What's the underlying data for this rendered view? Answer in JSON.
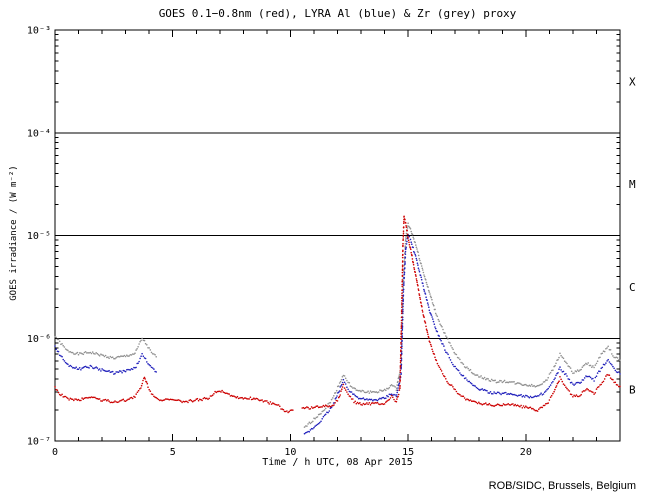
{
  "chart_data": {
    "type": "scatter",
    "title": "GOES 0.1−0.8nm (red), LYRA Al (blue) & Zr (grey) proxy",
    "xlabel": "Time / h UTC, 08 Apr 2015",
    "ylabel": "GOES irradiance / (W m⁻²)",
    "credit": "ROB/SIDC, Brussels, Belgium",
    "xlim": [
      0,
      24
    ],
    "ylim": [
      1e-07,
      0.001
    ],
    "ylog_min": -7,
    "ylog_max": -3,
    "x_minor_step": 1,
    "xticks": {
      "values": [
        0,
        5,
        10,
        15,
        20
      ],
      "labels": [
        "0",
        "5",
        "10",
        "15",
        "20"
      ]
    },
    "ylog_exponents": [
      -3,
      -4,
      -5,
      -6,
      -7
    ],
    "ytick_labels": [
      "10⁻³",
      "10⁻⁴",
      "10⁻⁵",
      "10⁻⁶",
      "10⁻⁷"
    ],
    "hlines": [
      0.0001,
      1e-05,
      1e-06
    ],
    "class_bands": [
      {
        "label": "X",
        "exp_top": -3,
        "exp_bottom": -4
      },
      {
        "label": "M",
        "exp_top": -4,
        "exp_bottom": -5
      },
      {
        "label": "C",
        "exp_top": -5,
        "exp_bottom": -6
      },
      {
        "label": "B",
        "exp_top": -6,
        "exp_bottom": -7
      }
    ],
    "dot_step": 0.05,
    "scatter": 0.012,
    "dot_r": 0.8,
    "series": [
      {
        "id": "zr",
        "name": "LYRA Zr proxy",
        "color": "#909090",
        "segments": [
          [
            [
              0,
              1.05e-06
            ],
            [
              0.2,
              9.2e-07
            ],
            [
              0.5,
              7.6e-07
            ],
            [
              1,
              7e-07
            ],
            [
              1.5,
              7.3e-07
            ],
            [
              2,
              6.8e-07
            ],
            [
              2.5,
              6.4e-07
            ],
            [
              3,
              6.7e-07
            ],
            [
              3.4,
              7.1e-07
            ],
            [
              3.7,
              1e-06
            ],
            [
              3.9,
              8.6e-07
            ],
            [
              4.1,
              7.2e-07
            ],
            [
              4.3,
              6.6e-07
            ]
          ],
          [
            [
              10.6,
              1.35e-07
            ],
            [
              10.9,
              1.55e-07
            ],
            [
              11.2,
              1.8e-07
            ],
            [
              11.5,
              2.1e-07
            ],
            [
              11.8,
              2.6e-07
            ],
            [
              12.05,
              3.5e-07
            ],
            [
              12.25,
              4.4e-07
            ],
            [
              12.5,
              3.6e-07
            ],
            [
              12.8,
              3.1e-07
            ],
            [
              13.2,
              3e-07
            ],
            [
              13.6,
              3e-07
            ],
            [
              14,
              3.1e-07
            ],
            [
              14.3,
              3.5e-07
            ],
            [
              14.5,
              3.2e-07
            ],
            [
              14.7,
              5.5e-07
            ],
            [
              14.8,
              3.8e-06
            ],
            [
              14.9,
              9.5e-06
            ],
            [
              15,
              1.3e-05
            ],
            [
              15.1,
              1.15e-05
            ],
            [
              15.3,
              8.5e-06
            ],
            [
              15.6,
              4.8e-06
            ],
            [
              15.9,
              2.8e-06
            ],
            [
              16.2,
              1.7e-06
            ],
            [
              16.6,
              1.05e-06
            ],
            [
              17,
              7e-07
            ],
            [
              17.4,
              5.4e-07
            ],
            [
              17.8,
              4.5e-07
            ],
            [
              18.2,
              4.1e-07
            ],
            [
              18.7,
              3.8e-07
            ],
            [
              19.2,
              3.8e-07
            ],
            [
              19.7,
              3.6e-07
            ],
            [
              20.1,
              3.5e-07
            ],
            [
              20.5,
              3.4e-07
            ],
            [
              20.9,
              4e-07
            ],
            [
              21.2,
              5.2e-07
            ],
            [
              21.45,
              7e-07
            ],
            [
              21.7,
              5.9e-07
            ],
            [
              22,
              4.6e-07
            ],
            [
              22.3,
              4.9e-07
            ],
            [
              22.6,
              5.7e-07
            ],
            [
              22.9,
              5.2e-07
            ],
            [
              23.2,
              6.9e-07
            ],
            [
              23.5,
              8.2e-07
            ],
            [
              23.75,
              6.6e-07
            ],
            [
              24,
              6.1e-07
            ]
          ]
        ]
      },
      {
        "id": "al",
        "name": "LYRA Al proxy",
        "color": "#2020bb",
        "segments": [
          [
            [
              0,
              8.2e-07
            ],
            [
              0.2,
              7e-07
            ],
            [
              0.5,
              5.6e-07
            ],
            [
              1,
              5e-07
            ],
            [
              1.5,
              5.3e-07
            ],
            [
              2,
              4.9e-07
            ],
            [
              2.5,
              4.6e-07
            ],
            [
              3,
              4.8e-07
            ],
            [
              3.4,
              5.1e-07
            ],
            [
              3.7,
              6.9e-07
            ],
            [
              3.9,
              6e-07
            ],
            [
              4.1,
              5.1e-07
            ],
            [
              4.3,
              4.7e-07
            ]
          ],
          [
            [
              10.6,
              1.15e-07
            ],
            [
              10.9,
              1.3e-07
            ],
            [
              11.2,
              1.5e-07
            ],
            [
              11.5,
              1.8e-07
            ],
            [
              11.8,
              2.2e-07
            ],
            [
              12.05,
              3e-07
            ],
            [
              12.25,
              3.9e-07
            ],
            [
              12.5,
              3.1e-07
            ],
            [
              12.8,
              2.7e-07
            ],
            [
              13.2,
              2.5e-07
            ],
            [
              13.6,
              2.5e-07
            ],
            [
              14,
              2.6e-07
            ],
            [
              14.3,
              2.9e-07
            ],
            [
              14.5,
              2.7e-07
            ],
            [
              14.7,
              4.5e-07
            ],
            [
              14.8,
              2.8e-06
            ],
            [
              14.9,
              7.5e-06
            ],
            [
              15,
              1e-05
            ],
            [
              15.1,
              9e-06
            ],
            [
              15.3,
              6.5e-06
            ],
            [
              15.6,
              3.5e-06
            ],
            [
              15.9,
              1.9e-06
            ],
            [
              16.2,
              1.2e-06
            ],
            [
              16.6,
              7.5e-07
            ],
            [
              17,
              5.2e-07
            ],
            [
              17.4,
              4.1e-07
            ],
            [
              17.8,
              3.4e-07
            ],
            [
              18.2,
              3.1e-07
            ],
            [
              18.7,
              2.9e-07
            ],
            [
              19.2,
              2.9e-07
            ],
            [
              19.7,
              2.8e-07
            ],
            [
              20.1,
              2.7e-07
            ],
            [
              20.5,
              2.7e-07
            ],
            [
              20.9,
              3.1e-07
            ],
            [
              21.2,
              3.9e-07
            ],
            [
              21.45,
              5.1e-07
            ],
            [
              21.7,
              4.4e-07
            ],
            [
              22,
              3.5e-07
            ],
            [
              22.3,
              3.7e-07
            ],
            [
              22.6,
              4.3e-07
            ],
            [
              22.9,
              3.9e-07
            ],
            [
              23.2,
              5.1e-07
            ],
            [
              23.5,
              6.2e-07
            ],
            [
              23.75,
              5e-07
            ],
            [
              24,
              4.5e-07
            ]
          ]
        ]
      },
      {
        "id": "goes",
        "name": "GOES 0.1-0.8nm",
        "color": "#cc0000",
        "segments": [
          [
            [
              0,
              3.3e-07
            ],
            [
              0.2,
              2.9e-07
            ],
            [
              0.5,
              2.6e-07
            ],
            [
              1,
              2.5e-07
            ],
            [
              1.5,
              2.7e-07
            ],
            [
              2,
              2.5e-07
            ],
            [
              2.5,
              2.4e-07
            ],
            [
              3,
              2.5e-07
            ],
            [
              3.4,
              2.7e-07
            ],
            [
              3.65,
              3.3e-07
            ],
            [
              3.8,
              4.2e-07
            ],
            [
              3.95,
              3.4e-07
            ],
            [
              4.15,
              2.8e-07
            ],
            [
              4.5,
              2.5e-07
            ],
            [
              5,
              2.5e-07
            ],
            [
              5.5,
              2.4e-07
            ],
            [
              6,
              2.5e-07
            ],
            [
              6.5,
              2.6e-07
            ],
            [
              6.9,
              3.1e-07
            ],
            [
              7.2,
              3e-07
            ],
            [
              7.6,
              2.7e-07
            ],
            [
              8,
              2.6e-07
            ],
            [
              8.5,
              2.6e-07
            ],
            [
              9,
              2.4e-07
            ],
            [
              9.5,
              2.2e-07
            ],
            [
              9.8,
              1.9e-07
            ],
            [
              10.1,
              2e-07
            ]
          ],
          [
            [
              10.5,
              2.1e-07
            ],
            [
              11,
              2.1e-07
            ],
            [
              11.4,
              2.2e-07
            ],
            [
              11.8,
              2.2e-07
            ],
            [
              12.05,
              2.6e-07
            ],
            [
              12.25,
              3.5e-07
            ],
            [
              12.45,
              2.9e-07
            ],
            [
              12.7,
              2.4e-07
            ],
            [
              13,
              2.3e-07
            ],
            [
              13.5,
              2.3e-07
            ],
            [
              14,
              2.3e-07
            ],
            [
              14.3,
              2.7e-07
            ],
            [
              14.5,
              2.4e-07
            ],
            [
              14.65,
              3.2e-07
            ],
            [
              14.72,
              1.5e-06
            ],
            [
              14.78,
              8e-06
            ],
            [
              14.83,
              1.55e-05
            ],
            [
              14.9,
              1.3e-05
            ],
            [
              15,
              9.5e-06
            ],
            [
              15.15,
              6.5e-06
            ],
            [
              15.35,
              3.8e-06
            ],
            [
              15.6,
              1.9e-06
            ],
            [
              15.9,
              9.5e-07
            ],
            [
              16.2,
              6e-07
            ],
            [
              16.6,
              4e-07
            ],
            [
              17,
              3.1e-07
            ],
            [
              17.4,
              2.6e-07
            ],
            [
              17.8,
              2.4e-07
            ],
            [
              18.2,
              2.3e-07
            ],
            [
              18.7,
              2.2e-07
            ],
            [
              19.2,
              2.3e-07
            ],
            [
              19.7,
              2.2e-07
            ],
            [
              20.1,
              2.1e-07
            ],
            [
              20.5,
              2e-07
            ],
            [
              20.9,
              2.3e-07
            ],
            [
              21.2,
              3e-07
            ],
            [
              21.45,
              4.1e-07
            ],
            [
              21.7,
              3.4e-07
            ],
            [
              22,
              2.7e-07
            ],
            [
              22.3,
              2.8e-07
            ],
            [
              22.6,
              3.2e-07
            ],
            [
              22.9,
              2.9e-07
            ],
            [
              23.2,
              3.6e-07
            ],
            [
              23.5,
              4.5e-07
            ],
            [
              23.75,
              3.7e-07
            ],
            [
              24,
              3.4e-07
            ]
          ]
        ]
      }
    ]
  }
}
